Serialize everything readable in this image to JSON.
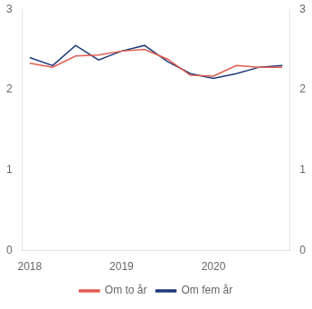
{
  "chart_data": {
    "type": "line",
    "x": [
      2018.0,
      2018.25,
      2018.5,
      2018.75,
      2019.0,
      2019.25,
      2019.5,
      2019.75,
      2020.0,
      2020.25,
      2020.5,
      2020.75
    ],
    "series": [
      {
        "name": "Om to år",
        "color": "#e05c4e",
        "values": [
          2.33,
          2.28,
          2.42,
          2.43,
          2.48,
          2.5,
          2.38,
          2.18,
          2.17,
          2.3,
          2.28,
          2.28
        ]
      },
      {
        "name": "Om fem år",
        "color": "#1f3a7a",
        "values": [
          2.4,
          2.3,
          2.55,
          2.37,
          2.48,
          2.55,
          2.35,
          2.2,
          2.14,
          2.2,
          2.28,
          2.3
        ]
      }
    ],
    "xlim": [
      2017.92,
      2020.83
    ],
    "xticks": [
      2018,
      2019,
      2020
    ],
    "ylim": [
      0,
      3
    ],
    "yticks": [
      0,
      1,
      2,
      3
    ],
    "y2lim": [
      0,
      3
    ],
    "y2ticks": [
      0,
      1,
      2,
      3
    ],
    "grid": false,
    "legend": "bottom"
  }
}
